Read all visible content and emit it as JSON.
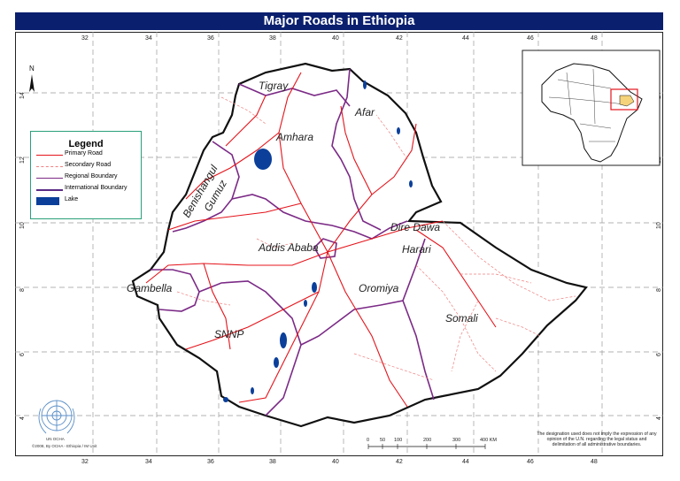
{
  "title": "Major Roads in Ethiopia",
  "longitude_ticks": [
    "32",
    "34",
    "36",
    "38",
    "40",
    "42",
    "44",
    "46",
    "48"
  ],
  "latitude_ticks": [
    "14",
    "12",
    "10",
    "8",
    "6",
    "4"
  ],
  "north_arrow": "N",
  "legend": {
    "title": "Legend",
    "items": [
      {
        "label": "Primary Road",
        "color": "#e4141b",
        "style": "solid"
      },
      {
        "label": "Secondary Road",
        "color": "#f08080",
        "style": "dashed"
      },
      {
        "label": "Regional Boundary",
        "color": "#7b2a86",
        "style": "solid"
      },
      {
        "label": "International Boundary",
        "color": "#5a2a86",
        "style": "solid"
      },
      {
        "label": "Lake",
        "color": "#0b3f9a",
        "style": "fill"
      }
    ]
  },
  "regions": {
    "tigray": "Tigray",
    "afar": "Afar",
    "amhara": "Amhara",
    "benishangul": "Benishangul",
    "gumuz": "Gumuz",
    "dire_dawa": "Dire Dawa",
    "addis_ababa": "Addis Ababa",
    "harari": "Harari",
    "gambella": "Gambella",
    "oromiya": "Oromiya",
    "somali": "Somali",
    "snnp": "SNNP"
  },
  "scale_bar": {
    "labels": [
      "0",
      "50",
      "100",
      "200",
      "300",
      "400 KM"
    ]
  },
  "un_logo_label": "UN OCHA",
  "credit": "©2008, By OCHA - Ethiopia / IM Unit",
  "disclaimer": "The designation used does not imply the expression of any opinion of the U.N. regarding the legal status and delimitation of all administrative boundaries.",
  "colors": {
    "title_bar": "#0a1f6e",
    "primary_road": "#e4141b",
    "secondary_road": "#f08080",
    "boundary": "#7b2a86",
    "lake": "#0b3f9a",
    "country_outline": "#111111"
  }
}
